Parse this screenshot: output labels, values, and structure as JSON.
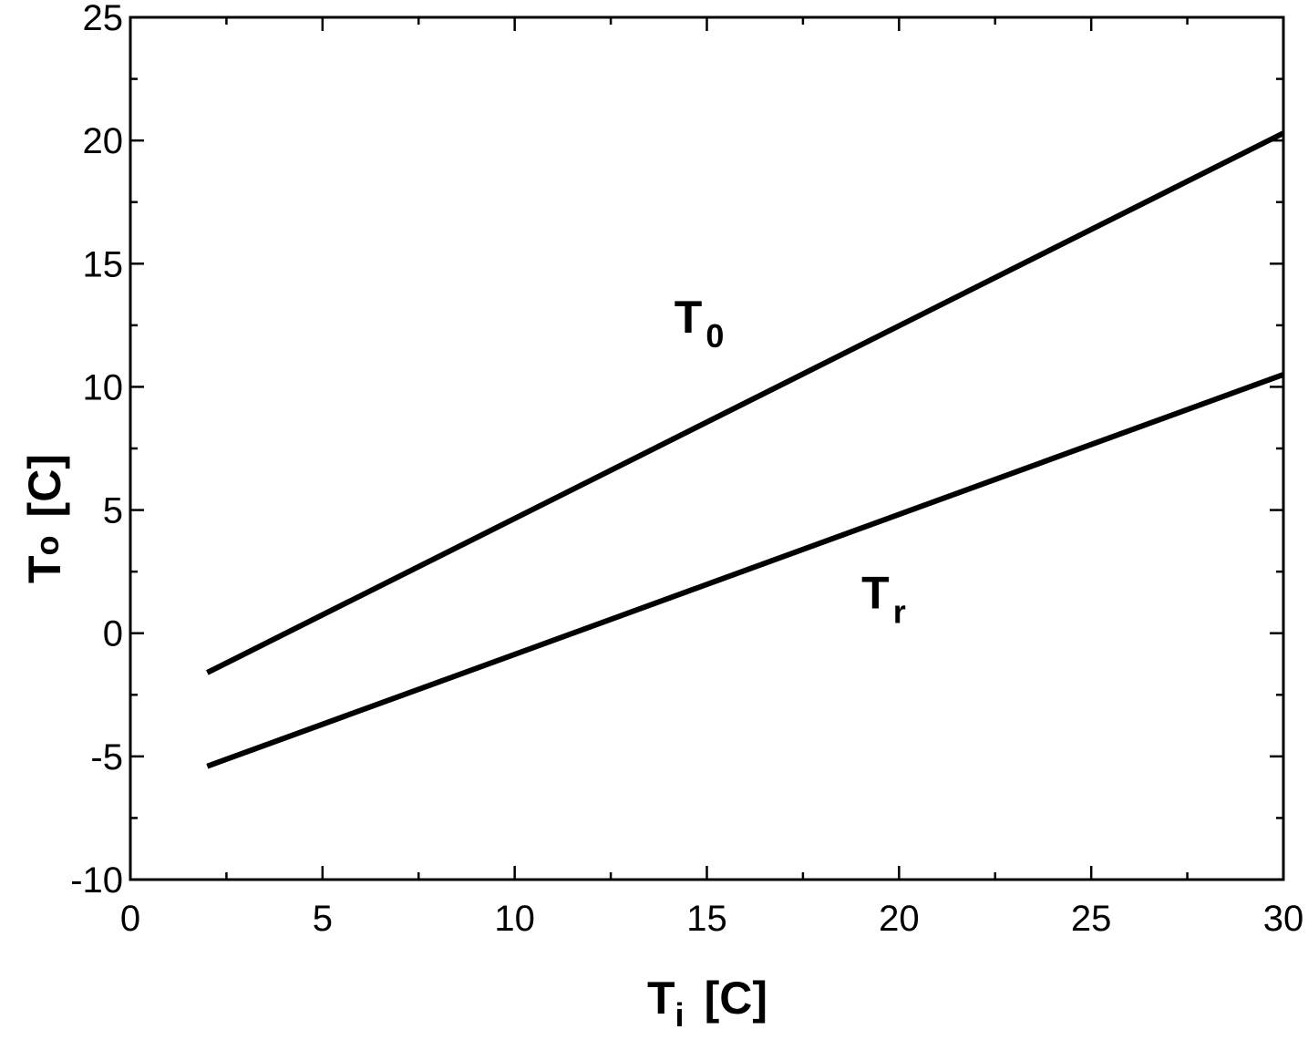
{
  "chart_data": {
    "type": "line",
    "title": "",
    "xlabel": {
      "main": "T",
      "sub": "i",
      "unit": "[C]"
    },
    "ylabel": {
      "main": "T",
      "sub": "o",
      "unit": "[C]"
    },
    "xlim": [
      0,
      30
    ],
    "ylim": [
      -10,
      25
    ],
    "xticks": [
      0,
      5,
      10,
      15,
      20,
      25,
      30
    ],
    "yticks": [
      -10,
      -5,
      0,
      5,
      10,
      15,
      20,
      25
    ],
    "xminor_step": 2.5,
    "yminor_step": 2.5,
    "grid": false,
    "line_color": "#000000",
    "series": [
      {
        "label_main": "T",
        "label_sub": "0",
        "label_at": [
          14.8,
          12.2
        ],
        "x": [
          2,
          30
        ],
        "y": [
          -1.6,
          20.3
        ]
      },
      {
        "label_main": "T",
        "label_sub": "r",
        "label_at": [
          19.6,
          1.0
        ],
        "x": [
          2,
          30
        ],
        "y": [
          -5.4,
          10.5
        ]
      }
    ]
  }
}
